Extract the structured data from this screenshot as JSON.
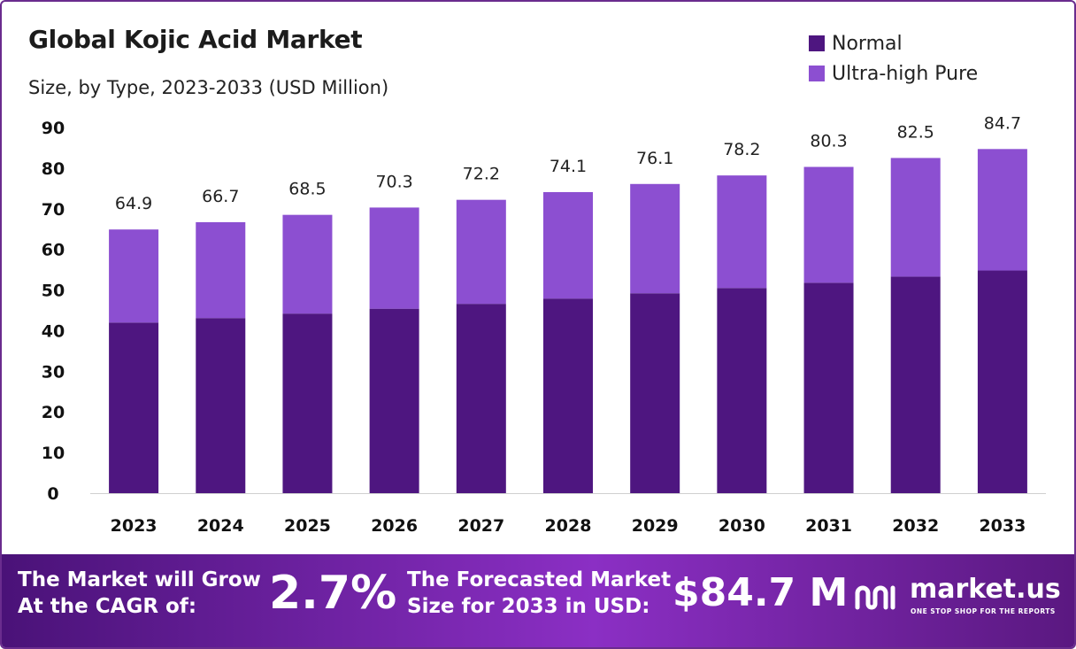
{
  "header": {
    "title": "Global Kojic Acid Market",
    "subtitle": "Size, by Type, 2023-2033 (USD Million)"
  },
  "legend": [
    {
      "label": "Normal",
      "color": "#4e1680"
    },
    {
      "label": "Ultra-high Pure",
      "color": "#8c4fd1"
    }
  ],
  "chart_data": {
    "type": "bar",
    "stacked": true,
    "categories": [
      "2023",
      "2024",
      "2025",
      "2026",
      "2027",
      "2028",
      "2029",
      "2030",
      "2031",
      "2032",
      "2033"
    ],
    "series": [
      {
        "name": "Normal",
        "color": "#4e1680",
        "values": [
          42.0,
          43.1,
          44.2,
          45.4,
          46.6,
          47.9,
          49.2,
          50.5,
          51.8,
          53.3,
          54.8
        ]
      },
      {
        "name": "Ultra-high Pure",
        "color": "#8c4fd1",
        "values": [
          22.9,
          23.6,
          24.3,
          24.9,
          25.6,
          26.2,
          26.9,
          27.7,
          28.5,
          29.2,
          29.9
        ]
      }
    ],
    "totals": [
      "64.9",
      "66.7",
      "68.5",
      "70.3",
      "72.2",
      "74.1",
      "76.1",
      "78.2",
      "80.3",
      "82.5",
      "84.7"
    ],
    "yticks": [
      0,
      10,
      20,
      30,
      40,
      50,
      60,
      70,
      80,
      90
    ],
    "ylim": [
      0,
      90
    ],
    "title": "Global Kojic Acid Market",
    "subtitle": "Size, by Type, 2023-2033 (USD Million)",
    "xlabel": "",
    "ylabel": "",
    "grid": false,
    "legend_position": "top-right"
  },
  "banner": {
    "cagr_line1": "The Market will Grow",
    "cagr_line2": "At the CAGR of:",
    "cagr_value": "2.7%",
    "forecast_line1": "The Forecasted Market",
    "forecast_line2": "Size for 2033 in USD:",
    "forecast_value": "$84.7 M",
    "logo_text": "market.us",
    "logo_tagline": "ONE STOP SHOP FOR THE REPORTS"
  }
}
